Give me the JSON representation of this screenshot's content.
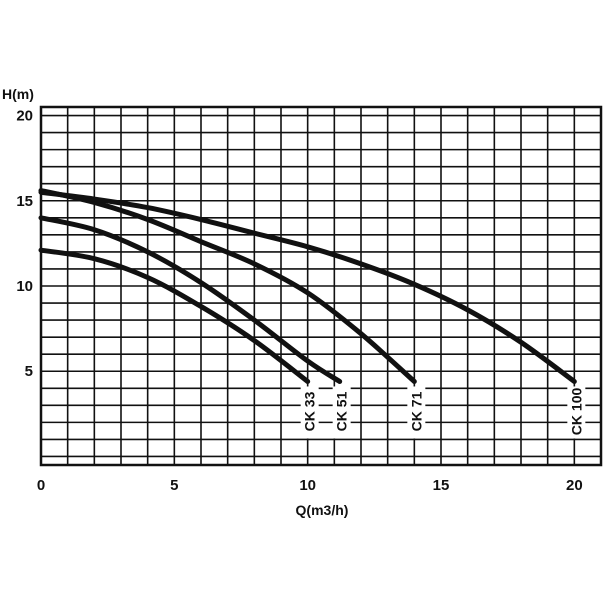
{
  "chart_data": {
    "type": "line",
    "title": "",
    "xlabel": "Q(m3/h)",
    "ylabel": "H(m)",
    "xlim": [
      0,
      21
    ],
    "ylim": [
      -0.5,
      20.5
    ],
    "xticks": [
      0,
      5,
      10,
      15,
      20
    ],
    "yticks": [
      5,
      10,
      15,
      20
    ],
    "grid": true,
    "series": [
      {
        "name": "CK 33",
        "x": [
          0,
          2,
          4,
          6,
          8,
          10
        ],
        "y": [
          12.1,
          11.6,
          10.5,
          8.8,
          6.8,
          4.4
        ]
      },
      {
        "name": "CK 51",
        "x": [
          0,
          2,
          4,
          6,
          8,
          10,
          11.2
        ],
        "y": [
          14.0,
          13.3,
          12.0,
          10.2,
          8.0,
          5.6,
          4.4
        ]
      },
      {
        "name": "CK 71",
        "x": [
          0,
          2,
          4,
          6,
          8,
          10,
          12,
          14
        ],
        "y": [
          15.6,
          14.9,
          13.9,
          12.6,
          11.3,
          9.6,
          7.2,
          4.4
        ]
      },
      {
        "name": "CK 100",
        "x": [
          0,
          2,
          4,
          6,
          8,
          10,
          12,
          14,
          16,
          18,
          20
        ],
        "y": [
          15.5,
          15.1,
          14.6,
          13.9,
          13.1,
          12.3,
          11.3,
          10.1,
          8.6,
          6.7,
          4.4
        ]
      }
    ]
  }
}
